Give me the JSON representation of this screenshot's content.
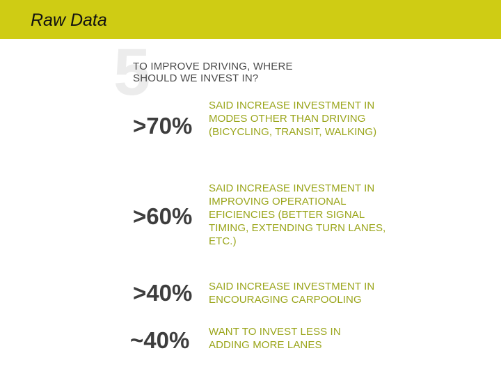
{
  "title": "Raw Data",
  "colors": {
    "header_bar": "#cfcc14",
    "stat_text": "#3d3d3d",
    "description_text": "#9aa51a",
    "faded_number": "#ececec"
  },
  "infographic": {
    "number": "5",
    "question": "TO IMPROVE DRIVING, WHERE SHOULD WE INVEST IN?",
    "stats": [
      {
        "value": ">70%",
        "description": "SAID INCREASE INVESTMENT IN MODES OTHER THAN DRIVING (BICYCLING, TRANSIT, WALKING)"
      },
      {
        "value": ">60%",
        "description": "SAID INCREASE INVESTMENT IN IMPROVING OPERATIONAL EFICIENCIES (BETTER SIGNAL TIMING, EXTENDING TURN LANES, ETC.)"
      },
      {
        "value": ">40%",
        "description": "SAID INCREASE INVESTMENT IN ENCOURAGING CARPOOLING"
      },
      {
        "value": "~40%",
        "description": "WANT TO INVEST LESS IN ADDING MORE LANES"
      }
    ]
  }
}
